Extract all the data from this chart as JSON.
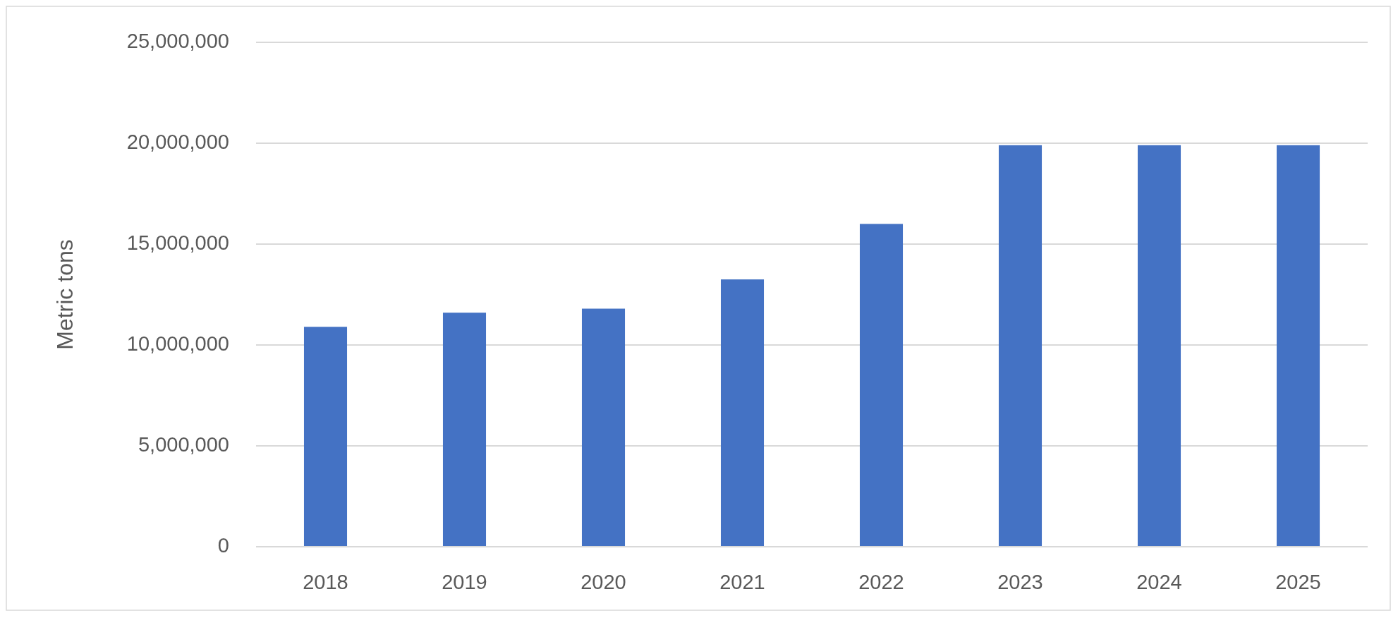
{
  "chart_data": {
    "type": "bar",
    "ylabel": "Metric tons",
    "categories": [
      "2018",
      "2019",
      "2020",
      "2021",
      "2022",
      "2023",
      "2024",
      "2025"
    ],
    "values": [
      10900000,
      11600000,
      11800000,
      13250000,
      16000000,
      19900000,
      19900000,
      19900000
    ],
    "color": "#4472c4",
    "ylim": [
      0,
      25000000
    ],
    "yticks": [
      0,
      {
        "value": 5000000,
        "label": "5,000,000"
      },
      {
        "value": 10000000,
        "label": "10,000,000"
      },
      {
        "value": 15000000,
        "label": "15,000,000"
      },
      {
        "value": 20000000,
        "label": "20,000,000"
      },
      {
        "value": 25000000,
        "label": "25,000,000"
      }
    ],
    "grid": "y"
  }
}
